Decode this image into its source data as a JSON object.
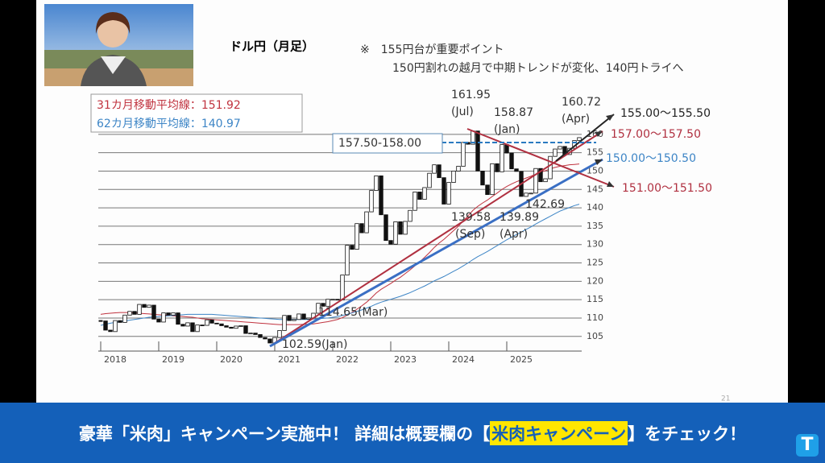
{
  "header": {
    "title": "ドル円（月足）",
    "note": [
      "※　155円台が重要ポイント",
      "150円割れの越月で中期トレンドが変化、140円トライへ"
    ],
    "page_number": "21"
  },
  "chart_data": {
    "type": "candlestick",
    "categories": [
      "2018",
      null,
      null,
      null,
      null,
      null,
      null,
      null,
      null,
      null,
      null,
      null,
      "2019",
      null,
      null,
      null,
      null,
      null,
      null,
      null,
      null,
      null,
      null,
      null,
      "2020",
      null,
      null,
      null,
      null,
      null,
      null,
      null,
      null,
      null,
      null,
      null,
      "2021",
      null,
      null,
      null,
      null,
      null,
      null,
      null,
      null,
      null,
      null,
      null,
      "2022",
      null,
      null,
      null,
      null,
      null,
      null,
      null,
      null,
      null,
      null,
      null,
      "2023",
      null,
      null,
      null,
      null,
      null,
      null,
      null,
      null,
      null,
      null,
      null,
      "2024",
      null,
      null,
      null,
      null,
      null,
      null,
      null,
      null,
      null,
      null,
      null,
      "2025",
      null,
      null,
      null,
      null,
      null,
      null,
      null,
      null,
      null,
      null,
      null,
      null,
      null,
      null,
      null
    ],
    "values": [
      109.2,
      106.7,
      106.3,
      109.3,
      108.8,
      110.8,
      111.8,
      111.0,
      113.7,
      112.9,
      113.5,
      109.7,
      108.9,
      111.4,
      110.8,
      111.4,
      108.3,
      107.8,
      108.7,
      106.3,
      108.1,
      108.0,
      109.5,
      108.6,
      108.4,
      107.9,
      107.5,
      107.2,
      107.8,
      107.9,
      105.8,
      105.9,
      105.5,
      104.7,
      104.3,
      103.2,
      104.7,
      106.6,
      110.7,
      109.3,
      109.6,
      111.1,
      109.7,
      110.0,
      111.3,
      114.0,
      113.2,
      115.1,
      115.1,
      114.9,
      121.7,
      129.8,
      128.7,
      135.7,
      133.2,
      138.9,
      144.7,
      148.7,
      138.1,
      131.1,
      130.1,
      136.2,
      132.8,
      136.3,
      139.3,
      144.3,
      142.3,
      145.5,
      149.4,
      151.7,
      148.2,
      141.0,
      146.9,
      150.0,
      151.3,
      157.8,
      157.3,
      160.9,
      150.0,
      146.2,
      143.6,
      152.0,
      149.8,
      157.2,
      154.9,
      150.6,
      149.9,
      143.1,
      144.0,
      144.0,
      150.7,
      147.1,
      147.9,
      154.0,
      156.0,
      156.7,
      154.5,
      156.2,
      158.3,
      159.1
    ],
    "series": [
      {
        "name": "31カ月移動平均線：151.92",
        "color": "#c0333f",
        "values": [
          111.0,
          111.2,
          111.3,
          111.4,
          111.5,
          111.5,
          111.5,
          111.4,
          111.3,
          111.2,
          111.1,
          111.0,
          110.9,
          110.8,
          110.7,
          110.6,
          110.5,
          110.4,
          110.3,
          110.2,
          110.0,
          109.8,
          109.7,
          109.6,
          109.5,
          109.4,
          109.3,
          109.2,
          109.1,
          109.0,
          108.9,
          108.8,
          108.7,
          108.6,
          108.5,
          108.4,
          108.3,
          108.2,
          108.2,
          108.2,
          108.2,
          108.2,
          108.3,
          108.3,
          108.4,
          108.6,
          108.8,
          109.0,
          109.3,
          109.6,
          110.1,
          110.8,
          111.5,
          112.4,
          113.3,
          114.3,
          115.5,
          116.8,
          117.8,
          118.6,
          119.4,
          120.3,
          121.1,
          122.1,
          123.1,
          124.2,
          125.3,
          126.5,
          127.8,
          129.2,
          130.4,
          131.4,
          132.6,
          133.8,
          135.0,
          136.4,
          137.8,
          139.3,
          140.4,
          141.3,
          142.1,
          143.1,
          144.0,
          145.0,
          145.8,
          146.5,
          147.1,
          147.6,
          148.1,
          148.6,
          149.2,
          149.7,
          150.1,
          150.6,
          151.0,
          151.3,
          151.5,
          151.7,
          151.8,
          151.92
        ]
      },
      {
        "name": "62カ月移動平均線：140.97",
        "color": "#3d85c6",
        "values": [
          108.0,
          108.3,
          108.6,
          108.8,
          109.0,
          109.2,
          109.4,
          109.6,
          109.8,
          110.0,
          110.2,
          110.3,
          110.4,
          110.5,
          110.6,
          110.7,
          110.8,
          110.9,
          111.0,
          111.0,
          111.0,
          111.0,
          111.0,
          111.0,
          110.9,
          110.8,
          110.7,
          110.6,
          110.5,
          110.4,
          110.3,
          110.2,
          110.1,
          110.0,
          109.9,
          109.8,
          109.7,
          109.6,
          109.6,
          109.6,
          109.6,
          109.6,
          109.6,
          109.6,
          109.7,
          109.8,
          109.9,
          110.0,
          110.2,
          110.4,
          110.7,
          111.0,
          111.4,
          111.8,
          112.2,
          112.7,
          113.2,
          113.8,
          114.3,
          114.7,
          115.1,
          115.5,
          115.9,
          116.4,
          116.9,
          117.5,
          118.1,
          118.7,
          119.4,
          120.1,
          120.7,
          121.3,
          122.0,
          122.7,
          123.4,
          124.2,
          125.0,
          125.9,
          126.7,
          127.4,
          128.1,
          128.9,
          129.7,
          130.5,
          131.3,
          132.0,
          132.7,
          133.4,
          134.1,
          134.8,
          135.6,
          136.3,
          137.0,
          137.7,
          138.4,
          139.1,
          139.6,
          140.1,
          140.6,
          140.97
        ]
      }
    ],
    "ylim": [
      101,
      165
    ],
    "yticks": [
      105,
      110,
      115,
      120,
      125,
      130,
      135,
      140,
      145,
      150,
      155,
      160
    ],
    "grid": true,
    "up_color": "#ffffff",
    "down_color": "#111111"
  },
  "annotations": [
    "161.95",
    "(Jul)",
    "158.87",
    "(Jan)",
    "160.72",
    "(Apr)",
    "139.58",
    "(Sep)",
    "139.89",
    "(Apr)",
    "142.69",
    "114.65(Mar)",
    "102.59(Jan)",
    "155.00～155.50",
    "157.00～157.50",
    "150.00～150.50",
    "151.00～151.50",
    "157.50-158.00"
  ],
  "banner": {
    "text_1": "豪華「米肉」キャンペーン実施中！ 詳細は概要欄の",
    "bracket_open": "【",
    "highlight": "米肉キャンペーン",
    "text_2": "】をチェック！",
    "logo": "T"
  }
}
